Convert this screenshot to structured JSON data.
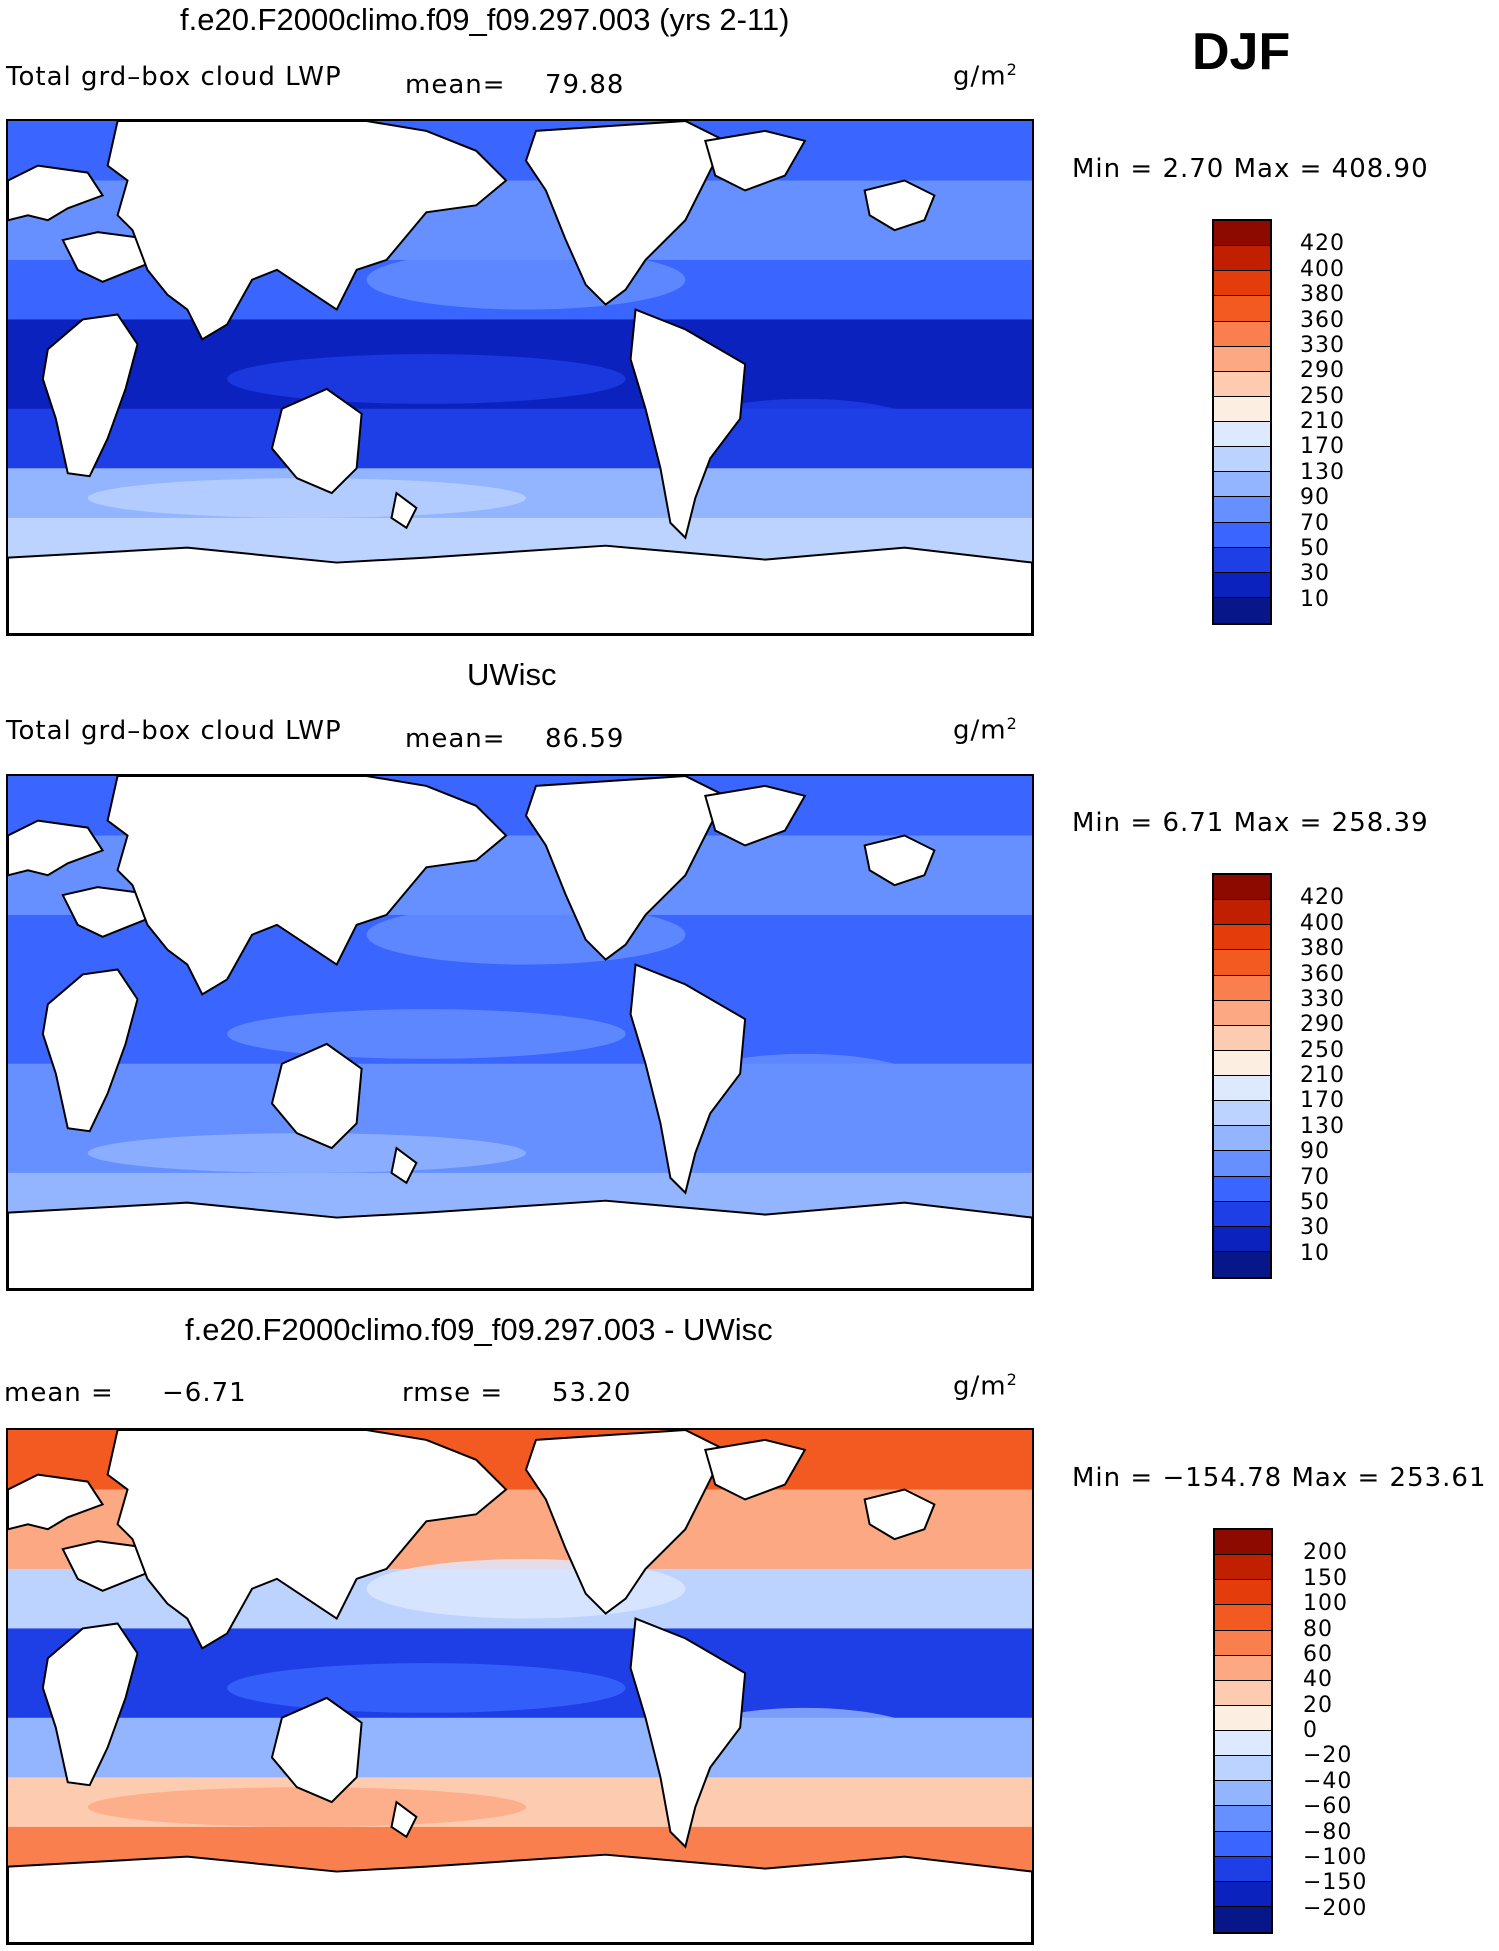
{
  "season": "DJF",
  "units": "g/m",
  "units_sup": "2",
  "colors": {
    "land": "#ffffff",
    "coast": "#000000"
  },
  "panels": [
    {
      "title": "f.e20.F2000climo.f09_f09.297.003 (yrs 2-11)",
      "variable": "Total grd–box cloud LWP",
      "mean_label": "mean=",
      "mean_value": "79.88",
      "minmax": "Min =    2.70  Max  =  408.90",
      "levels": [
        "420",
        "400",
        "380",
        "360",
        "330",
        "290",
        "250",
        "210",
        "170",
        "130",
        "90",
        "70",
        "50",
        "30",
        "10"
      ],
      "palette": [
        "#8c0a00",
        "#c02000",
        "#e53c0c",
        "#f25a22",
        "#f9804e",
        "#fca882",
        "#fdcbb0",
        "#fdeee2",
        "#dde9ff",
        "#bcd2ff",
        "#93b4ff",
        "#6690ff",
        "#3a66ff",
        "#1e3ee6",
        "#0c22bf",
        "#071689"
      ]
    },
    {
      "title": "UWisc",
      "variable": "Total grd–box cloud LWP",
      "mean_label": "mean=",
      "mean_value": "86.59",
      "minmax": "Min =    6.71  Max  =  258.39",
      "levels": [
        "420",
        "400",
        "380",
        "360",
        "330",
        "290",
        "250",
        "210",
        "170",
        "130",
        "90",
        "70",
        "50",
        "30",
        "10"
      ],
      "palette": [
        "#8c0a00",
        "#c02000",
        "#e53c0c",
        "#f25a22",
        "#f9804e",
        "#fca882",
        "#fdcbb0",
        "#fdeee2",
        "#dde9ff",
        "#bcd2ff",
        "#93b4ff",
        "#6690ff",
        "#3a66ff",
        "#1e3ee6",
        "#0c22bf",
        "#071689"
      ]
    },
    {
      "title": "f.e20.F2000climo.f09_f09.297.003 - UWisc",
      "mean_label": "mean  =",
      "mean_value": "−6.71",
      "rmse_label": "rmse  =",
      "rmse_value": "53.20",
      "minmax": "Min  = −154.78  Max  =  253.61",
      "levels": [
        "200",
        "150",
        "100",
        "80",
        "60",
        "40",
        "20",
        "0",
        "−20",
        "−40",
        "−60",
        "−80",
        "−100",
        "−150",
        "−200"
      ],
      "palette": [
        "#8c0a00",
        "#c02000",
        "#e53c0c",
        "#f25a22",
        "#f9804e",
        "#fca882",
        "#fdcbb0",
        "#fdeee2",
        "#dde9ff",
        "#bcd2ff",
        "#93b4ff",
        "#6690ff",
        "#3a66ff",
        "#1e3ee6",
        "#0c22bf",
        "#071689"
      ]
    }
  ]
}
